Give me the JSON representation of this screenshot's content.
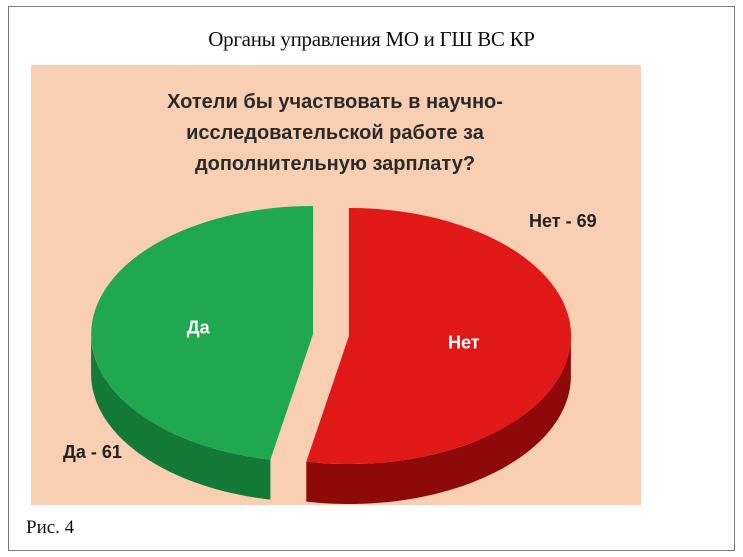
{
  "figure": {
    "header_title": "Органы управления МО и ГШ ВС КР",
    "caption": "Рис. 4"
  },
  "chart_data": {
    "type": "pie",
    "title_lines": [
      "Хотели бы участвовать в научно-",
      "исследовательской работе за",
      "дополнительную зарплату?"
    ],
    "slices": [
      {
        "label": "Да",
        "value": 61,
        "callout": "Да - 61",
        "color": "#1fa84f",
        "side_color": "#127a36"
      },
      {
        "label": "Нет",
        "value": 69,
        "callout": "Нет - 69",
        "color": "#e01818",
        "side_color": "#8e0a0a"
      }
    ],
    "style": "3d-exploded",
    "background_color": "#f8cfb3",
    "legend": "none"
  }
}
